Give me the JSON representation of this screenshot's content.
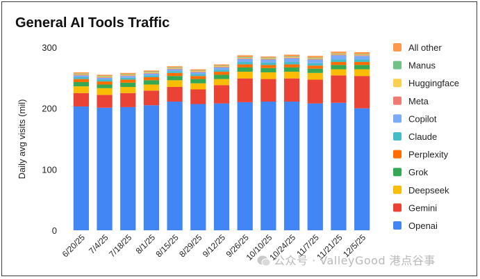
{
  "chart_data": {
    "type": "bar",
    "stacked": true,
    "title": "General AI Tools Traffic",
    "xlabel": "",
    "ylabel": "Daily avg visits (mil)",
    "ylim": [
      0,
      300
    ],
    "yticks": [
      0,
      100,
      200,
      300
    ],
    "grid": false,
    "legend_position": "right",
    "categories": [
      "6/20/25",
      "7/4/25",
      "7/18/25",
      "8/1/25",
      "8/15/25",
      "8/29/25",
      "9/12/25",
      "9/26/25",
      "10/10/25",
      "10/24/25",
      "11/7/25",
      "11/21/25",
      "12/5/25"
    ],
    "series": [
      {
        "name": "Openai",
        "color": "#4285f4",
        "values": [
          203,
          201,
          202,
          205,
          211,
          207,
          208,
          210,
          211,
          211,
          208,
          209,
          200
        ]
      },
      {
        "name": "Gemini",
        "color": "#ea4335",
        "values": [
          22,
          21,
          23,
          24,
          24,
          24,
          30,
          39,
          37,
          38,
          39,
          45,
          53
        ]
      },
      {
        "name": "Deepseek",
        "color": "#fbbc04",
        "values": [
          11,
          11,
          10,
          10,
          11,
          10,
          10,
          11,
          11,
          11,
          11,
          10,
          11
        ]
      },
      {
        "name": "Grok",
        "color": "#34a853",
        "values": [
          7,
          6,
          7,
          7,
          7,
          7,
          7,
          7,
          7,
          7,
          7,
          7,
          7
        ]
      },
      {
        "name": "Perplexity",
        "color": "#ff6d01",
        "values": [
          5,
          5,
          5,
          5,
          5,
          5,
          5,
          5,
          5,
          5,
          5,
          5,
          5
        ]
      },
      {
        "name": "Claude",
        "color": "#46bdc6",
        "values": [
          3,
          3,
          3,
          3,
          3,
          3,
          3,
          4,
          4,
          4,
          4,
          4,
          4
        ]
      },
      {
        "name": "Copilot",
        "color": "#7baaf7",
        "values": [
          3,
          3,
          3,
          3,
          3,
          3,
          4,
          5,
          5,
          6,
          6,
          7,
          6
        ]
      },
      {
        "name": "Meta",
        "color": "#f07b72",
        "values": [
          1,
          1,
          1,
          1,
          1,
          1,
          1,
          1,
          1,
          1,
          1,
          1,
          1
        ]
      },
      {
        "name": "Huggingface",
        "color": "#fcd04f",
        "values": [
          1,
          1,
          1,
          1,
          1,
          1,
          1,
          1,
          1,
          1,
          1,
          1,
          1
        ]
      },
      {
        "name": "Manus",
        "color": "#71c287",
        "values": [
          1,
          1,
          1,
          1,
          1,
          1,
          1,
          1,
          1,
          1,
          1,
          1,
          1
        ]
      },
      {
        "name": "All other",
        "color": "#ff994d",
        "values": [
          2,
          2,
          2,
          2,
          2,
          2,
          2,
          3,
          2,
          3,
          3,
          3,
          3
        ]
      }
    ]
  },
  "watermark": {
    "text": "公众号 · ValleyGood 港点谷事"
  }
}
